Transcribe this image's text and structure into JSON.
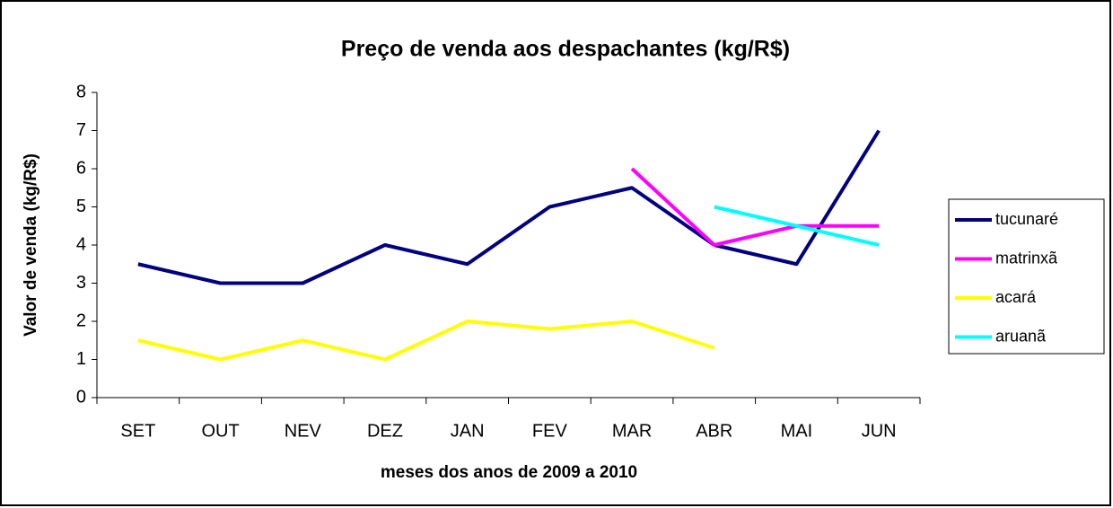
{
  "chart_data": {
    "type": "line",
    "title": "Preço de venda aos despachantes (kg/R$)",
    "x_label": "meses dos anos de 2009 a 2010",
    "y_label": "Valor de venda (kg/R$)",
    "categories": [
      "SET",
      "OUT",
      "NEV",
      "DEZ",
      "JAN",
      "FEV",
      "MAR",
      "ABR",
      "MAI",
      "JUN"
    ],
    "series": [
      {
        "name": "tucunaré",
        "color": "#000080",
        "values": [
          3.5,
          3,
          3,
          4,
          3.5,
          5,
          5.5,
          4,
          3.5,
          7
        ]
      },
      {
        "name": "matrinxã",
        "color": "#ff00ff",
        "values": [
          null,
          null,
          null,
          null,
          null,
          null,
          6,
          4,
          4.5,
          4.5
        ]
      },
      {
        "name": "acará",
        "color": "#ffff00",
        "values": [
          1.5,
          1,
          1.5,
          1,
          2,
          1.8,
          2,
          1.3,
          null,
          null
        ]
      },
      {
        "name": "aruanã",
        "color": "#00ffff",
        "values": [
          null,
          null,
          null,
          null,
          null,
          null,
          null,
          5,
          4.5,
          4
        ]
      }
    ],
    "ylim": [
      0,
      8
    ],
    "yticks": [
      0,
      1,
      2,
      3,
      4,
      5,
      6,
      7,
      8
    ],
    "grid": false,
    "legend": "right"
  }
}
